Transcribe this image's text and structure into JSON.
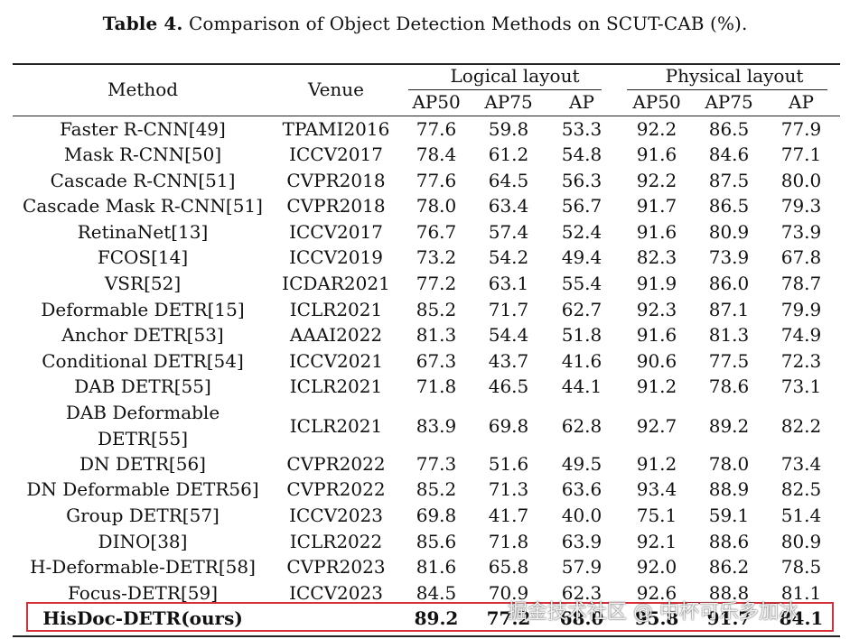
{
  "caption": {
    "label": "Table 4.",
    "text": "Comparison of Object Detection Methods on SCUT-CAB (%)."
  },
  "header": {
    "method": "Method",
    "venue": "Venue",
    "groups": [
      "Logical layout",
      "Physical layout"
    ],
    "metrics": [
      "AP50",
      "AP75",
      "AP",
      "AP50",
      "AP75",
      "AP"
    ]
  },
  "rows": [
    {
      "method": "Faster R-CNN[49]",
      "venue": "TPAMI2016",
      "vals": [
        "77.6",
        "59.8",
        "53.3",
        "92.2",
        "86.5",
        "77.9"
      ]
    },
    {
      "method": "Mask R-CNN[50]",
      "venue": "ICCV2017",
      "vals": [
        "78.4",
        "61.2",
        "54.8",
        "91.6",
        "84.6",
        "77.1"
      ]
    },
    {
      "method": "Cascade R-CNN[51]",
      "venue": "CVPR2018",
      "vals": [
        "77.6",
        "64.5",
        "56.3",
        "92.2",
        "87.5",
        "80.0"
      ]
    },
    {
      "method": "Cascade Mask R-CNN[51]",
      "venue": "CVPR2018",
      "vals": [
        "78.0",
        "63.4",
        "56.7",
        "91.7",
        "86.5",
        "79.3"
      ]
    },
    {
      "method": "RetinaNet[13]",
      "venue": "ICCV2017",
      "vals": [
        "76.7",
        "57.4",
        "52.4",
        "91.6",
        "80.9",
        "73.9"
      ]
    },
    {
      "method": "FCOS[14]",
      "venue": "ICCV2019",
      "vals": [
        "73.2",
        "54.2",
        "49.4",
        "82.3",
        "73.9",
        "67.8"
      ]
    },
    {
      "method": "VSR[52]",
      "venue": "ICDAR2021",
      "vals": [
        "77.2",
        "63.1",
        "55.4",
        "91.9",
        "86.0",
        "78.7"
      ]
    },
    {
      "method": "Deformable DETR[15]",
      "venue": "ICLR2021",
      "vals": [
        "85.2",
        "71.7",
        "62.7",
        "92.3",
        "87.1",
        "79.9"
      ]
    },
    {
      "method": "Anchor DETR[53]",
      "venue": "AAAI2022",
      "vals": [
        "81.3",
        "54.4",
        "51.8",
        "91.6",
        "81.3",
        "74.9"
      ]
    },
    {
      "method": "Conditional DETR[54]",
      "venue": "ICCV2021",
      "vals": [
        "67.3",
        "43.7",
        "41.6",
        "90.6",
        "77.5",
        "72.3"
      ]
    },
    {
      "method": "DAB DETR[55]",
      "venue": "ICLR2021",
      "vals": [
        "71.8",
        "46.5",
        "44.1",
        "91.2",
        "78.6",
        "73.1"
      ]
    },
    {
      "method": "DAB Deformable",
      "method2": "DETR[55]",
      "venue": "ICLR2021",
      "vals": [
        "83.9",
        "69.8",
        "62.8",
        "92.7",
        "89.2",
        "82.2"
      ]
    },
    {
      "method": "DN DETR[56]",
      "venue": "CVPR2022",
      "vals": [
        "77.3",
        "51.6",
        "49.5",
        "91.2",
        "78.0",
        "73.4"
      ]
    },
    {
      "method": "DN Deformable DETR56]",
      "venue": "CVPR2022",
      "vals": [
        "85.2",
        "71.3",
        "63.6",
        "93.4",
        "88.9",
        "82.5"
      ]
    },
    {
      "method": "Group DETR[57]",
      "venue": "ICCV2023",
      "vals": [
        "69.8",
        "41.7",
        "40.0",
        "75.1",
        "59.1",
        "51.4"
      ]
    },
    {
      "method": "DINO[38]",
      "venue": "ICLR2022",
      "vals": [
        "85.6",
        "71.8",
        "63.9",
        "92.1",
        "88.6",
        "80.9"
      ]
    },
    {
      "method": "H-Deformable-DETR[58]",
      "venue": "CVPR2023",
      "vals": [
        "81.6",
        "65.8",
        "57.9",
        "92.0",
        "86.2",
        "78.5"
      ]
    },
    {
      "method": "Focus-DETR[59]",
      "venue": "ICCV2023",
      "vals": [
        "84.5",
        "70.9",
        "62.3",
        "92.6",
        "88.8",
        "81.1"
      ]
    },
    {
      "method": "HisDoc-DETR(ours)",
      "venue": "",
      "vals": [
        "89.2",
        "77.2",
        "68.0",
        "95.8",
        "91.7",
        "84.1"
      ],
      "highlight": true
    }
  ],
  "watermark": "掘金技术社区 @ 中杯可乐多加冰",
  "highlight_color": "#d62f3a"
}
